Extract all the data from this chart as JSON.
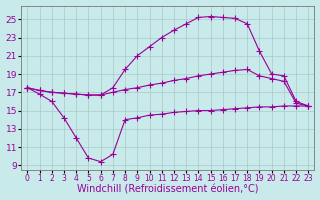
{
  "background_color": "#c8eaea",
  "grid_color": "#b0d0d0",
  "line_color": "#990099",
  "marker": "+",
  "marker_size": 4,
  "linewidth": 0.8,
  "xlabel": "Windchill (Refroidissement éolien,°C)",
  "xlabel_fontsize": 7,
  "ytick_fontsize": 6.5,
  "xtick_fontsize": 5.5,
  "ylim": [
    8.5,
    26.5
  ],
  "xlim": [
    -0.5,
    23.5
  ],
  "yticks": [
    9,
    11,
    13,
    15,
    17,
    19,
    21,
    23,
    25
  ],
  "xticks": [
    0,
    1,
    2,
    3,
    4,
    5,
    6,
    7,
    8,
    9,
    10,
    11,
    12,
    13,
    14,
    15,
    16,
    17,
    18,
    19,
    20,
    21,
    22,
    23
  ],
  "series": [
    {
      "x": [
        0,
        1,
        2,
        3,
        4,
        5,
        6,
        7,
        8,
        9,
        10,
        11,
        12,
        13,
        14,
        15,
        16,
        17,
        18,
        19,
        20,
        21,
        22,
        23
      ],
      "y": [
        17.5,
        16.8,
        16.0,
        14.2,
        12.0,
        9.8,
        9.4,
        10.2,
        14.0,
        14.2,
        14.5,
        14.6,
        14.8,
        14.9,
        15.0,
        15.0,
        15.1,
        15.2,
        15.3,
        15.4,
        15.4,
        15.5,
        15.5,
        15.5
      ]
    },
    {
      "x": [
        0,
        1,
        2,
        3,
        4,
        5,
        6,
        7,
        8,
        9,
        10,
        11,
        12,
        13,
        14,
        15,
        16,
        17,
        18,
        19,
        20,
        21,
        22,
        23
      ],
      "y": [
        17.5,
        17.2,
        17.0,
        16.9,
        16.8,
        16.7,
        16.7,
        17.0,
        17.3,
        17.5,
        17.8,
        18.0,
        18.3,
        18.5,
        18.8,
        19.0,
        19.2,
        19.4,
        19.5,
        18.8,
        18.5,
        18.2,
        15.8,
        15.5
      ]
    },
    {
      "x": [
        0,
        1,
        2,
        3,
        4,
        5,
        6,
        7,
        8,
        9,
        10,
        11,
        12,
        13,
        14,
        15,
        16,
        17,
        18,
        19,
        20,
        21,
        22,
        23
      ],
      "y": [
        17.5,
        17.2,
        17.0,
        16.9,
        16.8,
        16.7,
        16.7,
        17.5,
        19.5,
        21.0,
        22.0,
        23.0,
        23.8,
        24.5,
        25.2,
        25.3,
        25.2,
        25.1,
        24.5,
        21.5,
        19.0,
        18.8,
        16.0,
        15.5
      ]
    }
  ]
}
